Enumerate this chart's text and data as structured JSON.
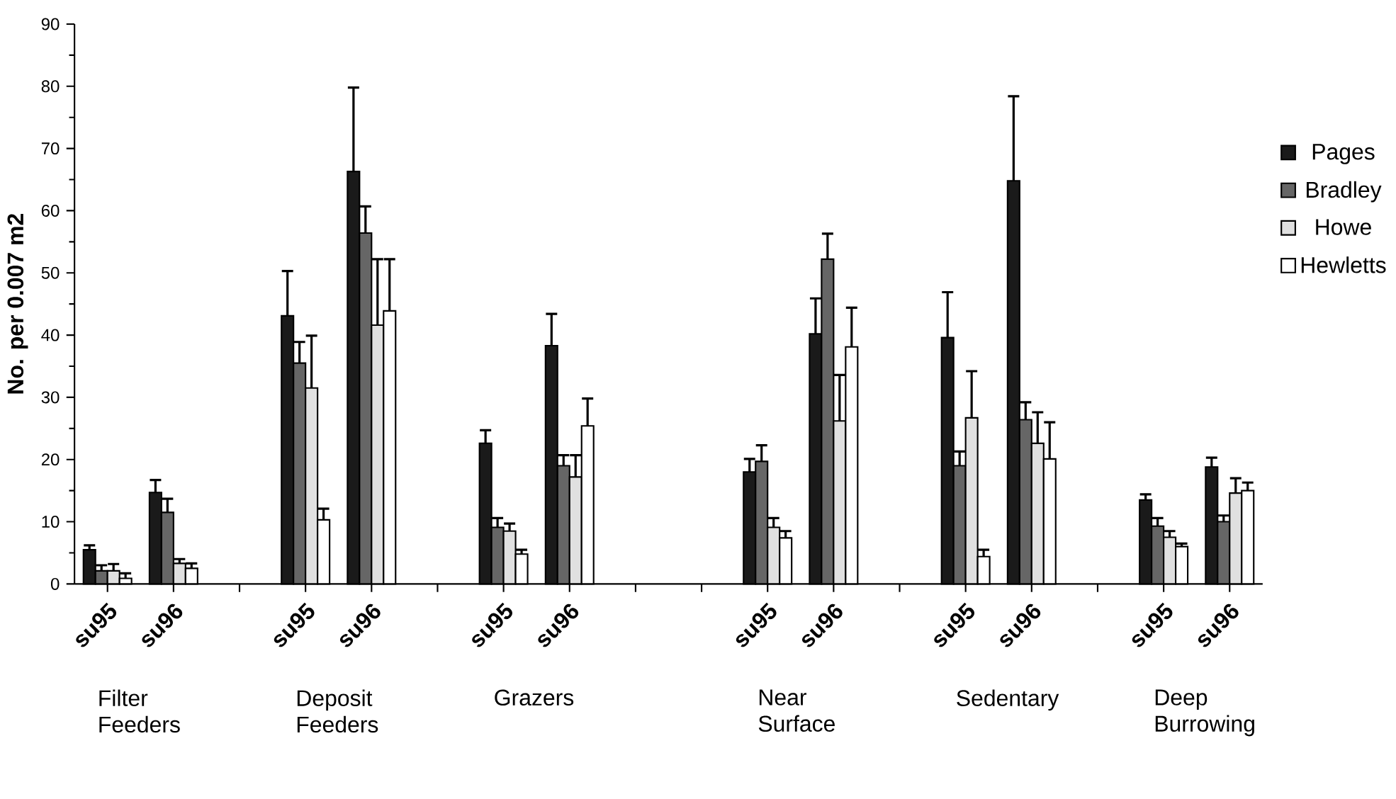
{
  "chart_data": {
    "type": "bar",
    "ylabel": "No. per 0.007 m2",
    "categories": [
      "su95",
      "su96",
      null,
      "su95",
      "su96",
      null,
      "su95",
      "su96",
      null,
      null,
      "su95",
      "su96",
      null,
      "su95",
      "su96",
      null,
      "su95",
      "su96"
    ],
    "series": [
      {
        "name": "Pages",
        "color": "#1a1a1a",
        "values": [
          5.5,
          14.7,
          null,
          43.1,
          66.3,
          null,
          22.6,
          38.3,
          null,
          null,
          18.0,
          40.2,
          null,
          39.6,
          64.8,
          null,
          13.5,
          18.8
        ],
        "errors": [
          [
            5.5,
            6.2
          ],
          [
            14.7,
            16.7
          ],
          null,
          [
            43.1,
            50.3
          ],
          [
            66.3,
            79.8
          ],
          null,
          [
            22.6,
            24.7
          ],
          [
            38.3,
            43.4
          ],
          null,
          null,
          [
            18.0,
            20.1
          ],
          [
            40.2,
            45.9
          ],
          null,
          [
            39.6,
            46.9
          ],
          [
            64.8,
            78.4
          ],
          null,
          [
            13.5,
            14.4
          ],
          [
            18.8,
            20.3
          ]
        ]
      },
      {
        "name": "Bradley",
        "color": "#666666",
        "values": [
          2.1,
          11.5,
          null,
          35.5,
          56.4,
          null,
          9.1,
          19.0,
          null,
          null,
          19.7,
          52.2,
          null,
          19.0,
          26.4,
          null,
          9.3,
          10.0
        ],
        "errors": [
          [
            2.1,
            3.0
          ],
          [
            11.5,
            13.7
          ],
          null,
          [
            35.5,
            38.9
          ],
          [
            56.4,
            60.7
          ],
          null,
          [
            9.1,
            10.6
          ],
          [
            19.0,
            20.7
          ],
          null,
          null,
          [
            19.7,
            22.3
          ],
          [
            52.2,
            56.3
          ],
          null,
          [
            19.0,
            21.3
          ],
          [
            26.4,
            29.2
          ],
          null,
          [
            9.3,
            10.6
          ],
          [
            10.0,
            11.0
          ]
        ]
      },
      {
        "name": "Howe",
        "color": "#e0e0e0",
        "values": [
          2.1,
          3.3,
          null,
          31.5,
          41.6,
          null,
          8.5,
          17.2,
          null,
          null,
          9.1,
          26.2,
          null,
          26.7,
          22.6,
          null,
          7.5,
          14.6
        ],
        "errors": [
          [
            2.1,
            3.2
          ],
          [
            3.3,
            4.0
          ],
          null,
          [
            31.5,
            39.9
          ],
          [
            41.6,
            52.2
          ],
          null,
          [
            8.5,
            9.7
          ],
          [
            17.2,
            20.7
          ],
          null,
          null,
          [
            9.1,
            10.6
          ],
          [
            26.2,
            33.6
          ],
          null,
          [
            26.7,
            34.2
          ],
          [
            22.6,
            27.6
          ],
          null,
          [
            7.5,
            8.5
          ],
          [
            14.6,
            17.0
          ]
        ]
      },
      {
        "name": "Hewletts",
        "color": "#ffffff",
        "values": [
          0.9,
          2.5,
          null,
          10.3,
          43.9,
          null,
          4.8,
          25.4,
          null,
          null,
          7.4,
          38.1,
          null,
          4.4,
          20.1,
          null,
          6.0,
          15.0
        ],
        "errors": [
          [
            0.9,
            1.7
          ],
          [
            2.5,
            3.3
          ],
          null,
          [
            10.3,
            12.1
          ],
          [
            43.9,
            52.2
          ],
          null,
          [
            4.8,
            5.5
          ],
          [
            25.4,
            29.8
          ],
          null,
          null,
          [
            7.4,
            8.5
          ],
          [
            38.1,
            44.4
          ],
          null,
          [
            4.4,
            5.5
          ],
          [
            20.1,
            26.0
          ],
          null,
          [
            6.0,
            6.5
          ],
          [
            15.0,
            16.3
          ]
        ]
      }
    ],
    "ylim": [
      0,
      90
    ],
    "yticks": [
      0,
      10,
      20,
      30,
      40,
      50,
      60,
      70,
      80,
      90
    ],
    "legend": "right",
    "annotations": [
      "Filter Feeders",
      "Deposit Feeders",
      "Grazers",
      "Near Surface",
      "Sedentary",
      "Deep Burrowing"
    ]
  }
}
